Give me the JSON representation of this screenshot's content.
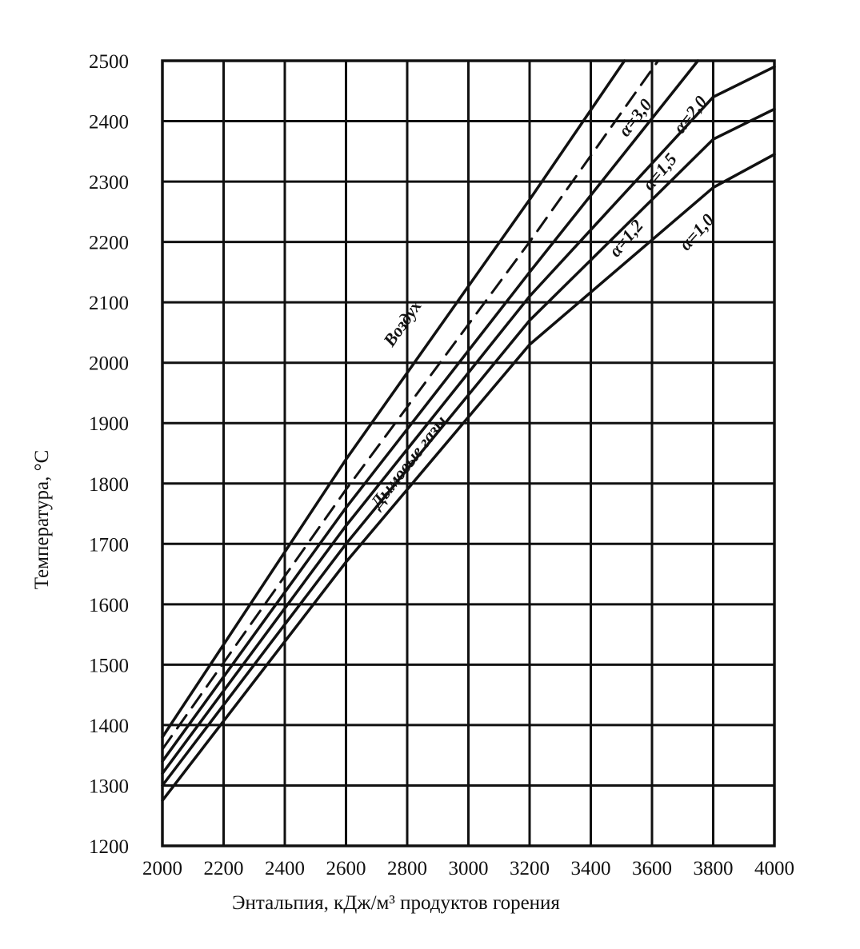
{
  "chart_data": {
    "type": "line",
    "xlabel": "Энтальпия, кДж/м³ продуктов горения",
    "ylabel": "Температура, °С",
    "xlim": [
      2000,
      4000
    ],
    "ylim": [
      1200,
      2500
    ],
    "x_ticks": [
      2000,
      2200,
      2400,
      2600,
      2800,
      3000,
      3200,
      3400,
      3600,
      3800,
      4000
    ],
    "y_ticks": [
      1200,
      1300,
      1400,
      1500,
      1600,
      1700,
      1800,
      1900,
      2000,
      2100,
      2200,
      2300,
      2400,
      2500
    ],
    "grid": true,
    "series": [
      {
        "name": "Воздух",
        "style": "solid",
        "x": [
          2000,
          2600,
          3200,
          3510
        ],
        "y": [
          1380,
          1840,
          2270,
          2500
        ]
      },
      {
        "name": "α=3,0",
        "style": "dashed",
        "x": [
          2000,
          2600,
          3200,
          3620
        ],
        "y": [
          1360,
          1790,
          2200,
          2500
        ]
      },
      {
        "name": "α=2,0",
        "style": "solid",
        "x": [
          2000,
          2600,
          3200,
          3750
        ],
        "y": [
          1340,
          1760,
          2150,
          2500
        ]
      },
      {
        "name": "α=1,5",
        "style": "solid",
        "x": [
          2000,
          2600,
          3200,
          3800,
          4000
        ],
        "y": [
          1320,
          1730,
          2110,
          2440,
          2490
        ]
      },
      {
        "name": "α=1,2",
        "style": "solid",
        "x": [
          2000,
          2600,
          3200,
          3800,
          4000
        ],
        "y": [
          1300,
          1700,
          2070,
          2370,
          2420
        ]
      },
      {
        "name": "α=1,0",
        "style": "solid",
        "x": [
          2000,
          2600,
          3200,
          3800,
          4000
        ],
        "y": [
          1275,
          1670,
          2030,
          2290,
          2345
        ]
      }
    ],
    "annotations": [
      {
        "text": "Воздух",
        "x": 2800,
        "y": 2060,
        "angle": -55
      },
      {
        "text": "α=3,0",
        "x": 3560,
        "y": 2400,
        "angle": -52
      },
      {
        "text": "α=2,0",
        "x": 3740,
        "y": 2405,
        "angle": -52
      },
      {
        "text": "α=1,5",
        "x": 3640,
        "y": 2310,
        "angle": -50
      },
      {
        "text": "α=1,2",
        "x": 3530,
        "y": 2200,
        "angle": -50
      },
      {
        "text": "α=1,0",
        "x": 3760,
        "y": 2210,
        "angle": -48
      },
      {
        "text": "Дымовые газы",
        "x": 2820,
        "y": 1830,
        "angle": -52
      }
    ]
  }
}
